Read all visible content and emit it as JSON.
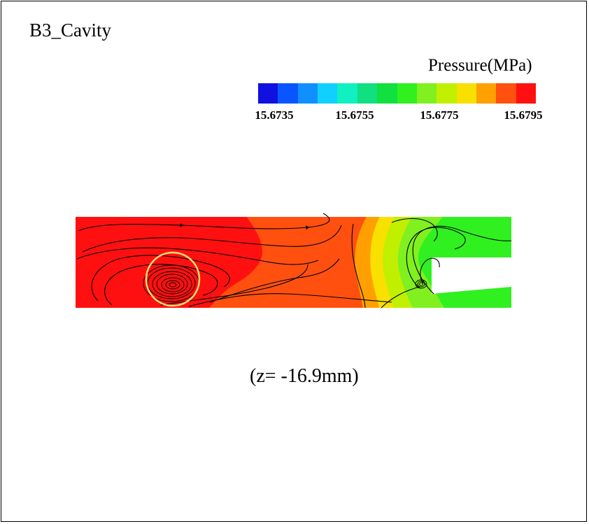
{
  "title": "B3_Cavity",
  "colorbar": {
    "title": "Pressure(MPa)",
    "colors": [
      "#1010e0",
      "#0a55ff",
      "#1090ff",
      "#10d0ff",
      "#10f0c0",
      "#10e080",
      "#10e040",
      "#30f020",
      "#80f020",
      "#c0f000",
      "#f8e000",
      "#ffa000",
      "#ff5010",
      "#ff1010"
    ],
    "ticks": [
      "15.6735",
      "15.6755",
      "15.6775",
      "15.6795"
    ]
  },
  "contour": {
    "colors": {
      "red": "#ff1010",
      "red_orange": "#ff5010",
      "orange": "#ffa000",
      "yellow": "#f8e000",
      "yellow_green": "#c0f000",
      "light_green": "#80f020",
      "green": "#30f020",
      "highlight_circle": "#f5e070"
    }
  },
  "caption": "(z= -16.9mm)"
}
